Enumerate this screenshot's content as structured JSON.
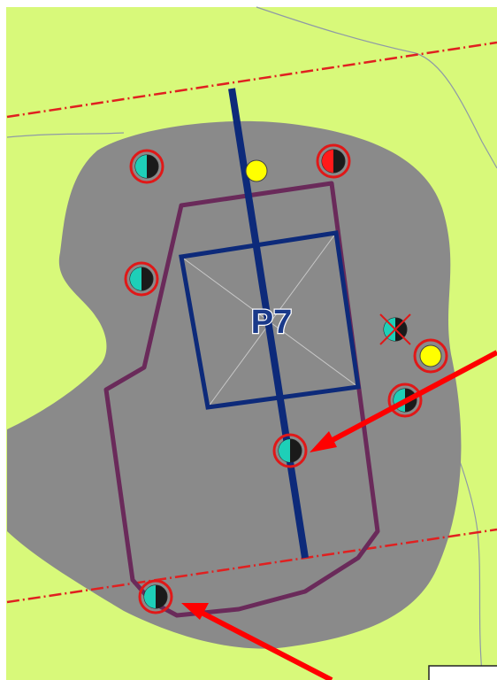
{
  "map": {
    "zone_label": "P7",
    "colors": {
      "background": "#d8f97a",
      "area_fill": "#8a8a8a",
      "boundary_line": "#6a2a5a",
      "axis_line": "#0d2a7a",
      "red_dashed": "#e02020",
      "marker_ring": "#e01818",
      "marker_cyan": "#1ecfb8",
      "marker_yellow": "#ffff00",
      "arrow": "#ff0000"
    },
    "markers": [
      {
        "kind": "well-half-cyan",
        "name": "marker-well-top-left"
      },
      {
        "kind": "point-yellow",
        "name": "marker-yellow-top"
      },
      {
        "kind": "well-half-red",
        "name": "marker-well-top-right"
      },
      {
        "kind": "well-half-cyan",
        "name": "marker-well-left"
      },
      {
        "kind": "well-crossed",
        "name": "marker-well-crossed"
      },
      {
        "kind": "point-yellow-ringed",
        "name": "marker-yellow-right"
      },
      {
        "kind": "well-half-cyan",
        "name": "marker-well-right"
      },
      {
        "kind": "well-half-cyan",
        "name": "marker-well-center"
      },
      {
        "kind": "well-half-cyan",
        "name": "marker-well-bottom"
      }
    ]
  }
}
